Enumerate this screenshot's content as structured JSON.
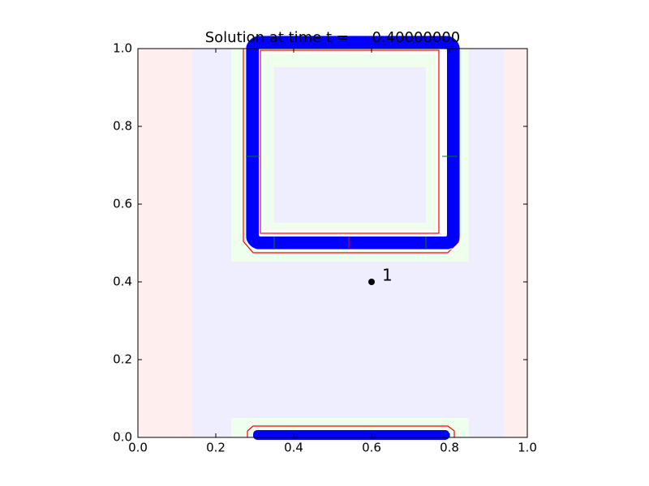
{
  "chart_data": {
    "type": "scatter",
    "title": "Solution at time t =     0.40000000",
    "x": [
      0.6
    ],
    "values": [
      0.4
    ],
    "point_labels": [
      "1"
    ],
    "color": "#000000",
    "xlim": [
      0,
      1
    ],
    "ylim": [
      0,
      1
    ],
    "xticks": [
      {
        "value": 0,
        "label": "0.0"
      },
      0.2,
      0.4,
      0.6,
      0.8,
      {
        "value": 1,
        "label": "1.0"
      }
    ],
    "yticks": [
      {
        "value": 0,
        "label": "0.0"
      },
      0.2,
      0.4,
      0.6,
      0.8,
      {
        "value": 1,
        "label": "1.0"
      }
    ]
  }
}
